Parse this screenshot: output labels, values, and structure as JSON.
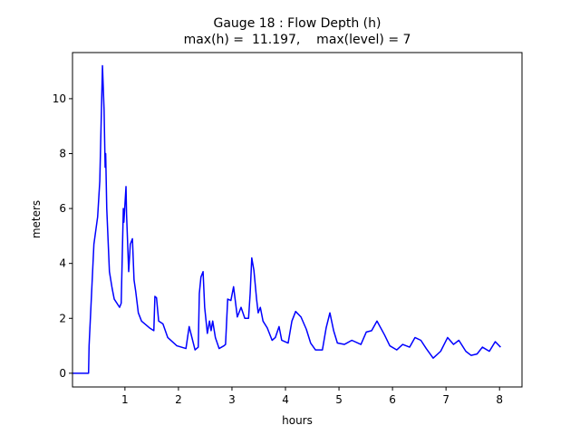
{
  "chart_data": {
    "type": "line",
    "title": "Gauge 18 : Flow Depth (h)",
    "subtitle": "max(h) =  11.197,    max(level) = 7",
    "x_label": "hours",
    "y_label": "meters",
    "xlim": [
      0.02,
      8.42
    ],
    "ylim": [
      -0.5,
      11.68
    ],
    "xticks": [
      1,
      2,
      3,
      4,
      5,
      6,
      7,
      8
    ],
    "yticks": [
      0,
      2,
      4,
      6,
      8,
      10
    ],
    "grid": false,
    "x": [
      0.02,
      0.32,
      0.33,
      0.42,
      0.49,
      0.53,
      0.58,
      0.61,
      0.63,
      0.64,
      0.66,
      0.71,
      0.76,
      0.8,
      0.9,
      0.93,
      0.97,
      0.98,
      1.02,
      1.03,
      1.07,
      1.1,
      1.14,
      1.17,
      1.2,
      1.25,
      1.31,
      1.46,
      1.54,
      1.56,
      1.59,
      1.63,
      1.71,
      1.8,
      1.97,
      2.14,
      2.2,
      2.31,
      2.37,
      2.39,
      2.42,
      2.46,
      2.49,
      2.54,
      2.58,
      2.61,
      2.64,
      2.69,
      2.76,
      2.85,
      2.88,
      2.92,
      2.98,
      3.03,
      3.1,
      3.17,
      3.24,
      3.31,
      3.34,
      3.37,
      3.41,
      3.46,
      3.49,
      3.53,
      3.58,
      3.66,
      3.75,
      3.81,
      3.88,
      3.93,
      4.05,
      4.12,
      4.19,
      4.29,
      4.39,
      4.47,
      4.56,
      4.69,
      4.76,
      4.83,
      4.9,
      4.97,
      5.1,
      5.24,
      5.41,
      5.51,
      5.61,
      5.71,
      5.85,
      5.95,
      6.08,
      6.19,
      6.32,
      6.42,
      6.53,
      6.63,
      6.76,
      6.9,
      7.03,
      7.14,
      7.24,
      7.37,
      7.47,
      7.58,
      7.68,
      7.81,
      7.92,
      8.02
    ],
    "series": [
      {
        "name": "h",
        "color": "#0000ff",
        "values": [
          0,
          0,
          1.0,
          4.7,
          5.7,
          7.0,
          11.2,
          9.6,
          7.5,
          8.0,
          6.0,
          3.7,
          3.1,
          2.7,
          2.4,
          2.55,
          6.0,
          5.5,
          6.8,
          5.8,
          3.7,
          4.7,
          4.9,
          3.4,
          3.0,
          2.2,
          1.9,
          1.65,
          1.55,
          2.8,
          2.75,
          1.9,
          1.8,
          1.3,
          1.0,
          0.9,
          1.7,
          0.85,
          0.95,
          2.9,
          3.5,
          3.7,
          2.4,
          1.45,
          1.9,
          1.55,
          1.9,
          1.3,
          0.9,
          1.0,
          1.05,
          2.7,
          2.65,
          3.15,
          2.05,
          2.4,
          2.0,
          2.0,
          2.9,
          4.2,
          3.75,
          2.7,
          2.2,
          2.4,
          1.9,
          1.65,
          1.2,
          1.3,
          1.7,
          1.2,
          1.1,
          1.9,
          2.25,
          2.05,
          1.6,
          1.1,
          0.85,
          0.85,
          1.65,
          2.2,
          1.55,
          1.1,
          1.05,
          1.2,
          1.05,
          1.5,
          1.55,
          1.9,
          1.4,
          1.0,
          0.85,
          1.05,
          0.95,
          1.3,
          1.2,
          0.9,
          0.55,
          0.8,
          1.3,
          1.05,
          1.2,
          0.8,
          0.65,
          0.7,
          0.95,
          0.8,
          1.15,
          0.95
        ]
      }
    ]
  }
}
